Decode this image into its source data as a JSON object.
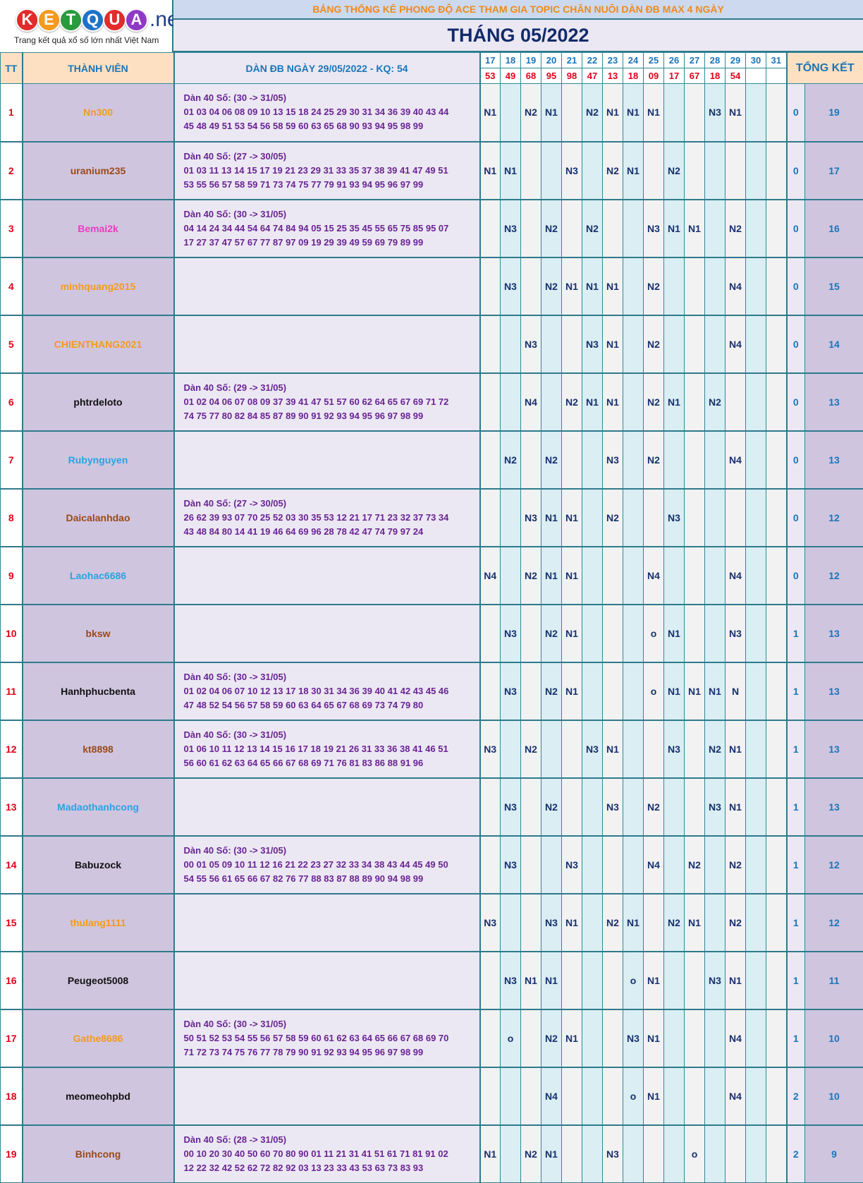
{
  "logo": {
    "letters": [
      {
        "ch": "K",
        "color": "#e22b2b"
      },
      {
        "ch": "E",
        "color": "#f39a1f"
      },
      {
        "ch": "T",
        "color": "#2a9b3d"
      },
      {
        "ch": "Q",
        "color": "#1e73c8"
      },
      {
        "ch": "U",
        "color": "#e22b2b"
      },
      {
        "ch": "A",
        "color": "#8e3ac7"
      }
    ],
    "net": ".net",
    "tagline": "Trang kết quả xổ số lớn nhất Việt Nam"
  },
  "banner": "BẢNG THỐNG KÊ PHONG ĐỘ ACE THAM GIA TOPIC CHĂN NUÔI DÀN ĐB MAX 4 NGÀY",
  "month_title": "THÁNG 05/2022",
  "header": {
    "tt": "TT",
    "member": "THÀNH VIÊN",
    "dan": "DÀN ĐB NGÀY 29/05/2022 - KQ: 54",
    "summary": "TỔNG KẾT",
    "days": [
      "17",
      "18",
      "19",
      "20",
      "21",
      "22",
      "23",
      "24",
      "25",
      "26",
      "27",
      "28",
      "29",
      "30",
      "31"
    ],
    "results": [
      "53",
      "49",
      "68",
      "95",
      "98",
      "47",
      "13",
      "18",
      "09",
      "17",
      "67",
      "18",
      "54",
      "",
      ""
    ]
  },
  "rows": [
    {
      "tt": "1",
      "name": "Nn300",
      "color": "#f39a1f",
      "dan_title": "Dàn 40 Số: (30 -> 31/05)",
      "dan_line1": "01 03 04 06 08 09 10 13 15 18 24 25 29 30 31 34 36 39 40 43 44",
      "dan_line2": "45 48 49 51 53 54 56 58 59 60 63 65 68 90 93 94 95 98 99",
      "cells": [
        "N1",
        "",
        "N2",
        "N1",
        "",
        "N2",
        "N1",
        "N1",
        "N1",
        "",
        "",
        "N3",
        "N1",
        "",
        ""
      ],
      "trung": "0",
      "tong": "19"
    },
    {
      "tt": "2",
      "name": "uranium235",
      "color": "#9a4a18",
      "dan_title": "Dàn 40 Số: (27 -> 30/05)",
      "dan_line1": "01 03 11 13 14 15 17 19 21 23 29 31 33 35 37 38 39 41 47 49 51",
      "dan_line2": "53 55 56 57 58 59 71 73 74 75 77 79 91 93 94 95 96 97 99",
      "cells": [
        "N1",
        "N1",
        "",
        "",
        "N3",
        "",
        "N2",
        "N1",
        "",
        "N2",
        "",
        "",
        "",
        "",
        ""
      ],
      "trung": "0",
      "tong": "17"
    },
    {
      "tt": "3",
      "name": "Bemai2k",
      "color": "#e63fbf",
      "dan_title": "Dàn 40 Số: (30 -> 31/05)",
      "dan_line1": "04 14 24 34 44 54 64 74 84 94 05 15 25 35 45 55 65 75 85 95 07",
      "dan_line2": "17 27 37 47 57 67 77 87 97 09 19 29 39 49 59 69 79 89 99",
      "cells": [
        "",
        "N3",
        "",
        "N2",
        "",
        "N2",
        "",
        "",
        "N3",
        "N1",
        "N1",
        "",
        "N2",
        "",
        ""
      ],
      "trung": "0",
      "tong": "16"
    },
    {
      "tt": "4",
      "name": "minhquang2015",
      "color": "#f39a1f",
      "dan_title": "",
      "dan_line1": "",
      "dan_line2": "",
      "cells": [
        "",
        "N3",
        "",
        "N2",
        "N1",
        "N1",
        "N1",
        "",
        "N2",
        "",
        "",
        "",
        "N4",
        "",
        ""
      ],
      "trung": "0",
      "tong": "15"
    },
    {
      "tt": "5",
      "name": "CHIENTHANG2021",
      "color": "#f39a1f",
      "dan_title": "",
      "dan_line1": "",
      "dan_line2": "",
      "cells": [
        "",
        "",
        "N3",
        "",
        "",
        "N3",
        "N1",
        "",
        "N2",
        "",
        "",
        "",
        "N4",
        "",
        ""
      ],
      "trung": "0",
      "tong": "14"
    },
    {
      "tt": "6",
      "name": "phtrdeloto",
      "color": "#111111",
      "dan_title": "Dàn 40 Số: (29 -> 31/05)",
      "dan_line1": "01 02 04 06 07 08 09 37 39 41 47 51 57 60 62 64 65 67 69 71 72",
      "dan_line2": "74 75 77 80 82 84 85 87 89 90 91 92 93 94 95 96 97 98 99",
      "cells": [
        "",
        "",
        "N4",
        "",
        "N2",
        "N1",
        "N1",
        "",
        "N2",
        "N1",
        "",
        "N2",
        "",
        "",
        ""
      ],
      "trung": "0",
      "tong": "13"
    },
    {
      "tt": "7",
      "name": "Rubynguyen",
      "color": "#29a3e0",
      "dan_title": "",
      "dan_line1": "",
      "dan_line2": "",
      "cells": [
        "",
        "N2",
        "",
        "N2",
        "",
        "",
        "N3",
        "",
        "N2",
        "",
        "",
        "",
        "N4",
        "",
        ""
      ],
      "trung": "0",
      "tong": "13"
    },
    {
      "tt": "8",
      "name": "Daicalanhdao",
      "color": "#9a4a18",
      "dan_title": "Dàn 40 Số: (27 -> 30/05)",
      "dan_line1": "26 62 39 93 07 70 25 52 03 30 35 53 12 21 17 71 23 32 37 73 34",
      "dan_line2": "43 48 84 80 14 41 19 46 64 69 96 28 78 42 47 74 79 97 24",
      "cells": [
        "",
        "",
        "N3",
        "N1",
        "N1",
        "",
        "N2",
        "",
        "",
        "N3",
        "",
        "",
        "",
        "",
        ""
      ],
      "trung": "0",
      "tong": "12"
    },
    {
      "tt": "9",
      "name": "Laohac6686",
      "color": "#29a3e0",
      "dan_title": "",
      "dan_line1": "",
      "dan_line2": "",
      "cells": [
        "N4",
        "",
        "N2",
        "N1",
        "N1",
        "",
        "",
        "",
        "N4",
        "",
        "",
        "",
        "N4",
        "",
        ""
      ],
      "trung": "0",
      "tong": "12"
    },
    {
      "tt": "10",
      "name": "bksw",
      "color": "#9a4a18",
      "dan_title": "",
      "dan_line1": "",
      "dan_line2": "",
      "cells": [
        "",
        "N3",
        "",
        "N2",
        "N1",
        "",
        "",
        "",
        "o",
        "N1",
        "",
        "",
        "N3",
        "",
        ""
      ],
      "trung": "1",
      "tong": "13"
    },
    {
      "tt": "11",
      "name": "Hanhphucbenta",
      "color": "#111111",
      "dan_title": "Dàn 40 Số: (30 -> 31/05)",
      "dan_line1": "01 02 04 06 07 10 12 13 17 18 30 31 34 36 39 40 41 42 43 45 46",
      "dan_line2": "47 48 52 54 56 57 58 59 60 63 64 65 67 68 69 73 74 79 80",
      "cells": [
        "",
        "N3",
        "",
        "N2",
        "N1",
        "",
        "",
        "",
        "o",
        "N1",
        "N1",
        "N1",
        "N",
        "",
        ""
      ],
      "trung": "1",
      "tong": "13"
    },
    {
      "tt": "12",
      "name": "kt8898",
      "color": "#9a4a18",
      "dan_title": "Dàn 40 Số: (30 -> 31/05)",
      "dan_line1": "01 06 10 11 12 13 14 15 16 17 18 19 21 26 31 33 36 38 41 46 51",
      "dan_line2": "56 60 61 62 63 64 65 66 67 68 69 71 76 81 83 86 88 91 96",
      "cells": [
        "N3",
        "",
        "N2",
        "",
        "",
        "N3",
        "N1",
        "",
        "",
        "N3",
        "",
        "N2",
        "N1",
        "",
        ""
      ],
      "trung": "1",
      "tong": "13"
    },
    {
      "tt": "13",
      "name": "Madaothanhcong",
      "color": "#29a3e0",
      "dan_title": "",
      "dan_line1": "",
      "dan_line2": "",
      "cells": [
        "",
        "N3",
        "",
        "N2",
        "",
        "",
        "N3",
        "",
        "N2",
        "",
        "",
        "N3",
        "N1",
        "",
        ""
      ],
      "trung": "1",
      "tong": "13"
    },
    {
      "tt": "14",
      "name": "Babuzock",
      "color": "#111111",
      "dan_title": "Dàn 40 Số: (30 -> 31/05)",
      "dan_line1": "00 01 05 09 10 11 12 16 21 22 23 27 32 33 34 38 43 44 45 49 50",
      "dan_line2": "54 55 56 61 65 66 67 82 76 77 88 83 87 88 89 90 94 98 99",
      "cells": [
        "",
        "N3",
        "",
        "",
        "N3",
        "",
        "",
        "",
        "N4",
        "",
        "N2",
        "",
        "N2",
        "",
        ""
      ],
      "trung": "1",
      "tong": "12"
    },
    {
      "tt": "15",
      "name": "thulang1111",
      "color": "#f39a1f",
      "dan_title": "",
      "dan_line1": "",
      "dan_line2": "",
      "cells": [
        "N3",
        "",
        "",
        "N3",
        "N1",
        "",
        "N2",
        "N1",
        "",
        "N2",
        "N1",
        "",
        "N2",
        "",
        ""
      ],
      "trung": "1",
      "tong": "12"
    },
    {
      "tt": "16",
      "name": "Peugeot5008",
      "color": "#111111",
      "dan_title": "",
      "dan_line1": "",
      "dan_line2": "",
      "cells": [
        "",
        "N3",
        "N1",
        "N1",
        "",
        "",
        "",
        "o",
        "N1",
        "",
        "",
        "N3",
        "N1",
        "",
        ""
      ],
      "trung": "1",
      "tong": "11"
    },
    {
      "tt": "17",
      "name": "Gathe8686",
      "color": "#f39a1f",
      "dan_title": "Dàn 40 Số: (30 -> 31/05)",
      "dan_line1": "50 51 52 53 54 55 56 57 58 59 60 61 62 63 64 65 66 67 68 69 70",
      "dan_line2": "71 72 73 74 75 76 77 78 79 90 91 92 93 94 95 96 97 98 99",
      "cells": [
        "",
        "o",
        "",
        "N2",
        "N1",
        "",
        "",
        "N3",
        "N1",
        "",
        "",
        "",
        "N4",
        "",
        ""
      ],
      "trung": "1",
      "tong": "10"
    },
    {
      "tt": "18",
      "name": "meomeohpbd",
      "color": "#111111",
      "dan_title": "",
      "dan_line1": "",
      "dan_line2": "",
      "cells": [
        "",
        "",
        "",
        "N4",
        "",
        "",
        "",
        "o",
        "N1",
        "",
        "",
        "",
        "N4",
        "",
        ""
      ],
      "trung": "2",
      "tong": "10"
    },
    {
      "tt": "19",
      "name": "Binhcong",
      "color": "#9a4a18",
      "dan_title": "Dàn 40 Số: (28 -> 31/05)",
      "dan_line1": "00 10 20 30 40 50 60 70 80 90 01 11 21 31 41 51 61 71 81 91 02",
      "dan_line2": "12 22 32 42 52 62 72 82 92 03 13 23 33 43 53 63 73 83 93",
      "cells": [
        "N1",
        "",
        "N2",
        "N1",
        "",
        "",
        "N3",
        "",
        "",
        "",
        "o",
        "",
        "",
        "",
        ""
      ],
      "trung": "2",
      "tong": "9"
    }
  ]
}
